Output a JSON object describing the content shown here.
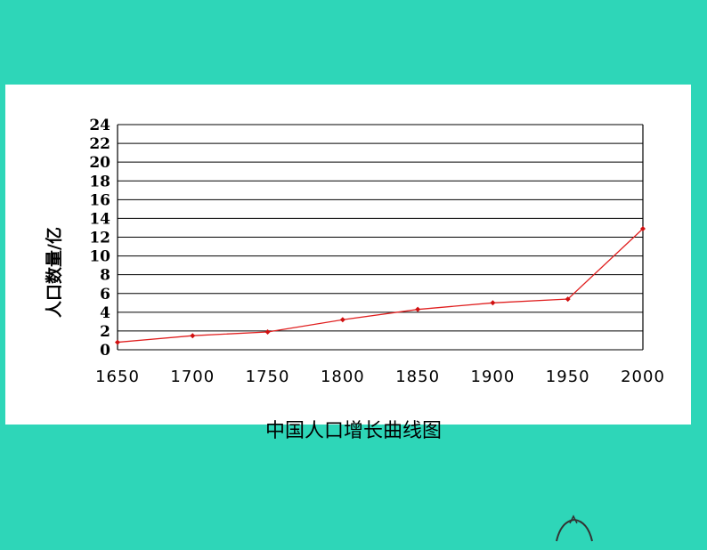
{
  "chart_data": {
    "type": "line",
    "title": "中国人口增长曲线图",
    "xlabel": "",
    "ylabel": "人口数量/亿",
    "x": [
      1650,
      1700,
      1750,
      1800,
      1850,
      1900,
      1950,
      2000
    ],
    "x_tick_labels": [
      "1650",
      "1700",
      "1750",
      "1800",
      "1850",
      "1900",
      "1950",
      "2000"
    ],
    "y_ticks": [
      0,
      2,
      4,
      6,
      8,
      10,
      12,
      14,
      16,
      18,
      20,
      22,
      24
    ],
    "ylim": [
      0,
      24
    ],
    "xlim": [
      1650,
      2000
    ],
    "grid": true,
    "series": [
      {
        "values": [
          0.8,
          1.5,
          1.9,
          3.2,
          4.3,
          5.0,
          5.4,
          12.9
        ]
      }
    ],
    "colors": {
      "line": "#e02020",
      "marker": "#d01010",
      "grid": "#000000"
    }
  }
}
